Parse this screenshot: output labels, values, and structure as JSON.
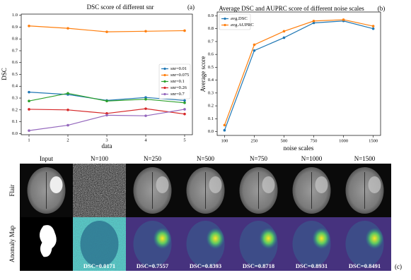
{
  "chart_data": [
    {
      "type": "line",
      "title": "DSC score of different snr",
      "panel_label": "(a)",
      "x_label": "data",
      "y_label": "DSC",
      "x": [
        1,
        2,
        3,
        4,
        5
      ],
      "xlim": [
        0.8,
        5.2
      ],
      "xticks": [
        1,
        2,
        3,
        4,
        5
      ],
      "ylim": [
        -0.01,
        1.01
      ],
      "yticks": [
        {
          "value": 0,
          "label": "0.0"
        },
        0.1,
        0.2,
        0.3,
        0.4,
        0.5,
        0.6,
        0.7,
        0.8,
        0.9,
        {
          "value": 1,
          "label": "1.0"
        }
      ],
      "legend": "center right",
      "series": [
        {
          "name": "snr=0.01",
          "color": "#1f77b4",
          "values": [
            0.35,
            0.33,
            0.28,
            0.305,
            0.28
          ]
        },
        {
          "name": "snr=0.075",
          "color": "#ff7f0e",
          "values": [
            0.91,
            0.89,
            0.86,
            0.865,
            0.87
          ]
        },
        {
          "name": "snr=0.1",
          "color": "#2ca02c",
          "values": [
            0.275,
            0.34,
            0.275,
            0.29,
            0.26
          ]
        },
        {
          "name": "snr=0.26",
          "color": "#d62728",
          "values": [
            0.205,
            0.2,
            0.17,
            0.21,
            0.165
          ]
        },
        {
          "name": "snr=0.7",
          "color": "#9467bd",
          "values": [
            0.025,
            0.07,
            0.155,
            0.15,
            0.205
          ]
        }
      ]
    },
    {
      "type": "line",
      "title": "Average DSC and AUPRC score of different noise scales",
      "panel_label": "(b)",
      "x_label": "noise scales",
      "y_label": "Average score",
      "categories": [
        "100",
        "250",
        "500",
        "750",
        "1000",
        "1500"
      ],
      "ylim": [
        -0.03,
        0.93
      ],
      "yticks": [
        {
          "value": 0,
          "label": "0.0"
        },
        0.1,
        0.2,
        0.3,
        0.4,
        0.5,
        0.6,
        0.7,
        0.8,
        0.9
      ],
      "legend": "upper left",
      "series": [
        {
          "name": "avg.DSC",
          "color": "#1f77b4",
          "values": [
            0.01,
            0.63,
            0.73,
            0.845,
            0.86,
            0.8
          ]
        },
        {
          "name": "avg.AUPRC",
          "color": "#ff7f0e",
          "values": [
            0.05,
            0.675,
            0.78,
            0.86,
            0.87,
            0.82
          ]
        }
      ]
    }
  ],
  "figure_c": {
    "panel_label": "(c)",
    "columns": [
      "Input",
      "N=100",
      "N=250",
      "N=500",
      "N=750",
      "N=1000",
      "N=1500"
    ],
    "rows": [
      "Flair",
      "Anomaly Map"
    ],
    "dsc_labels": [
      "DSC=0.0171",
      "DSC=0.7557",
      "DSC=0.8393",
      "DSC=0.8718",
      "DSC=0.8931",
      "DSC=0.8491"
    ]
  }
}
